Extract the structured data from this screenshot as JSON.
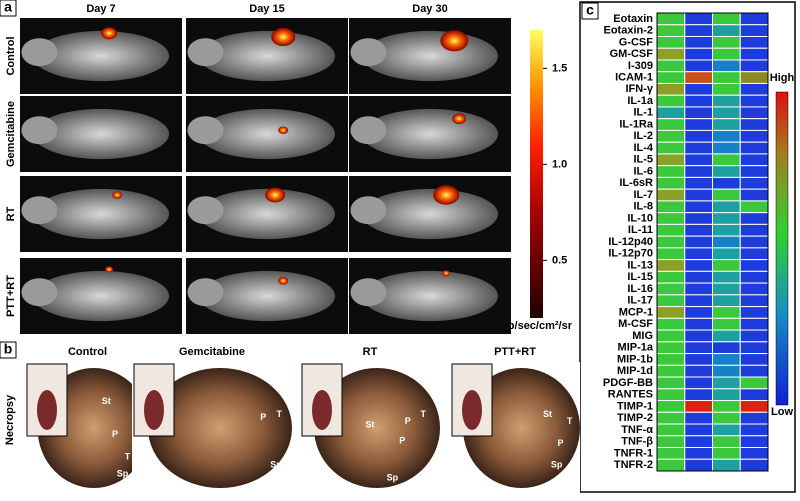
{
  "panel_a": {
    "label": "a",
    "columns": [
      "Day 7",
      "Day 15",
      "Day 30"
    ],
    "rows": [
      "Control",
      "Gemcitabine",
      "RT",
      "PTT+RT"
    ],
    "colorbar": {
      "lim": [
        0.2,
        1.7
      ],
      "ticks": [
        {
          "value": 0.5,
          "label": "0.5"
        },
        {
          "value": 1,
          "label": "1.0"
        },
        {
          "value": 1.5,
          "label": "1.5"
        }
      ],
      "unit": "p/sec/cm²/sr"
    }
  },
  "panel_b": {
    "label": "b",
    "side_label": "Necropsy",
    "titles": [
      "Control",
      "Gemcitabine",
      "RT",
      "PTT+RT"
    ],
    "annotations": [
      "St",
      "P",
      "T",
      "Sp",
      "P",
      "T",
      "Sp",
      "St",
      "P",
      "T",
      "P",
      "Sp",
      "St",
      "T",
      "P",
      "Sp"
    ]
  },
  "panel_c": {
    "label": "c",
    "high": "High",
    "low": "Low",
    "rows": [
      "Eotaxin",
      "Eotaxin-2",
      "G-CSF",
      "GM-CSF",
      "I-309",
      "ICAM-1",
      "IFN-γ",
      "IL-1a",
      "IL-1",
      "IL-1Ra",
      "IL-2",
      "IL-4",
      "IL-5",
      "IL-6",
      "IL-6sR",
      "IL-7",
      "IL-8",
      "IL-10",
      "IL-11",
      "IL-12p40",
      "IL-12p70",
      "IL-13",
      "IL-15",
      "IL-16",
      "IL-17",
      "MCP-1",
      "M-CSF",
      "MIG",
      "MIP-1a",
      "MIP-1b",
      "MIP-1d",
      "PDGF-BB",
      "RANTES",
      "TIMP-1",
      "TIMP-2",
      "TNF-α",
      "TNF-β",
      "TNFR-1",
      "TNFR-2"
    ],
    "cells": [
      [
        "#3cc83c",
        "#1e3cdc",
        "#3cc83c",
        "#1e3cdc"
      ],
      [
        "#3cc83c",
        "#1e3cdc",
        "#1fa0a0",
        "#1e3cdc"
      ],
      [
        "#3cc83c",
        "#1e3cdc",
        "#3cc83c",
        "#1e3cdc"
      ],
      [
        "#8ca028",
        "#1e3cdc",
        "#3cc83c",
        "#1e3cdc"
      ],
      [
        "#3cc83c",
        "#1e3cdc",
        "#1880c8",
        "#1e3cdc"
      ],
      [
        "#3cc83c",
        "#c85018",
        "#3cc83c",
        "#8c8a20"
      ],
      [
        "#8ca028",
        "#1e3cdc",
        "#3cc83c",
        "#1e3cdc"
      ],
      [
        "#3cc83c",
        "#1e3cdc",
        "#1fa0a0",
        "#1e3cdc"
      ],
      [
        "#1fa0a0",
        "#1e3cdc",
        "#1fa0a0",
        "#1e3cdc"
      ],
      [
        "#3cc83c",
        "#1e3cdc",
        "#1fa0a0",
        "#1e3cdc"
      ],
      [
        "#3cc83c",
        "#1e3cdc",
        "#1880c8",
        "#1e3cdc"
      ],
      [
        "#3cc83c",
        "#1e3cdc",
        "#1880c8",
        "#1e3cdc"
      ],
      [
        "#8ca028",
        "#1e3cdc",
        "#3cc83c",
        "#1e3cdc"
      ],
      [
        "#3cc83c",
        "#1e3cdc",
        "#1fa0a0",
        "#1e3cdc"
      ],
      [
        "#3cc83c",
        "#1e3cdc",
        "#1e3cdc",
        "#1e3cdc"
      ],
      [
        "#8ca028",
        "#1e3cdc",
        "#3cc83c",
        "#1e3cdc"
      ],
      [
        "#3cc83c",
        "#1e3cdc",
        "#1fa0a0",
        "#3cc83c"
      ],
      [
        "#3cc83c",
        "#1e3cdc",
        "#1fa0a0",
        "#1e3cdc"
      ],
      [
        "#3cc83c",
        "#1e3cdc",
        "#1fa0a0",
        "#1e3cdc"
      ],
      [
        "#3cc83c",
        "#1e3cdc",
        "#1880c8",
        "#1e3cdc"
      ],
      [
        "#3cc83c",
        "#1e3cdc",
        "#1fa0a0",
        "#1e3cdc"
      ],
      [
        "#8ca028",
        "#1e3cdc",
        "#3cc83c",
        "#1e3cdc"
      ],
      [
        "#3cc83c",
        "#1e3cdc",
        "#1fa0a0",
        "#1e3cdc"
      ],
      [
        "#3cc83c",
        "#1e3cdc",
        "#1fa0a0",
        "#1e3cdc"
      ],
      [
        "#3cc83c",
        "#1e3cdc",
        "#1fa0a0",
        "#1e3cdc"
      ],
      [
        "#8ca028",
        "#1e3cdc",
        "#3cc83c",
        "#1e3cdc"
      ],
      [
        "#3cc83c",
        "#1e3cdc",
        "#3cc83c",
        "#1e3cdc"
      ],
      [
        "#3cc83c",
        "#1e3cdc",
        "#1fa0a0",
        "#1e3cdc"
      ],
      [
        "#3cc83c",
        "#1e3cdc",
        "#1e3cdc",
        "#1e3cdc"
      ],
      [
        "#3cc83c",
        "#1e3cdc",
        "#1880c8",
        "#1e3cdc"
      ],
      [
        "#3cc83c",
        "#1e3cdc",
        "#1880c8",
        "#1e3cdc"
      ],
      [
        "#3cc83c",
        "#1e3cdc",
        "#1fa0a0",
        "#3cc83c"
      ],
      [
        "#3cc83c",
        "#1e3cdc",
        "#1fa0a0",
        "#1e3cdc"
      ],
      [
        "#3cc83c",
        "#e02010",
        "#3cc83c",
        "#e02010"
      ],
      [
        "#3cc83c",
        "#1e3cdc",
        "#3cc83c",
        "#1e3cdc"
      ],
      [
        "#3cc83c",
        "#1e3cdc",
        "#1fa0a0",
        "#1e3cdc"
      ],
      [
        "#3cc83c",
        "#1e3cdc",
        "#3cc83c",
        "#1e3cdc"
      ],
      [
        "#3cc83c",
        "#1e3cdc",
        "#3cc83c",
        "#1e3cdc"
      ],
      [
        "#3cc83c",
        "#1e3cdc",
        "#1fa0a0",
        "#1e3cdc"
      ]
    ]
  }
}
